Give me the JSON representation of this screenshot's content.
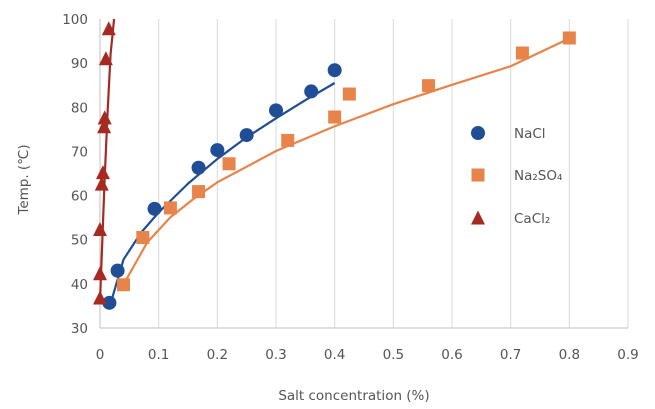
{
  "chart_data": {
    "type": "scatter",
    "xlabel": "Salt concentration (%)",
    "ylabel": "Temp. (℃)",
    "xlim": [
      0,
      0.9
    ],
    "ylim": [
      30,
      100
    ],
    "x_ticks": [
      "0",
      "0.1",
      "0.2",
      "0.3",
      "0.4",
      "0.5",
      "0.6",
      "0.7",
      "0.8",
      "0.9"
    ],
    "y_ticks": [
      "30",
      "40",
      "50",
      "60",
      "70",
      "80",
      "90",
      "100"
    ],
    "grid": "vertical",
    "legend_position": "right",
    "series": [
      {
        "name": "NaCl",
        "marker": "circle",
        "color": "#1f4e96",
        "points": [
          {
            "x": 0.016,
            "y": 35.7
          },
          {
            "x": 0.03,
            "y": 43.0
          },
          {
            "x": 0.093,
            "y": 57.0
          },
          {
            "x": 0.168,
            "y": 66.3
          },
          {
            "x": 0.2,
            "y": 70.3
          },
          {
            "x": 0.25,
            "y": 73.7
          },
          {
            "x": 0.3,
            "y": 79.3
          },
          {
            "x": 0.36,
            "y": 83.6
          },
          {
            "x": 0.4,
            "y": 88.4
          }
        ],
        "trend": [
          {
            "x": 0.016,
            "y": 34.6
          },
          {
            "x": 0.04,
            "y": 45.5
          },
          {
            "x": 0.07,
            "y": 51.6
          },
          {
            "x": 0.1,
            "y": 56.2
          },
          {
            "x": 0.15,
            "y": 62.7
          },
          {
            "x": 0.2,
            "y": 68.3
          },
          {
            "x": 0.25,
            "y": 73.2
          },
          {
            "x": 0.3,
            "y": 77.5
          },
          {
            "x": 0.35,
            "y": 81.6
          },
          {
            "x": 0.4,
            "y": 85.5
          }
        ]
      },
      {
        "name": "Na₂SO₄",
        "marker": "square",
        "color": "#e8834a",
        "points": [
          {
            "x": 0.04,
            "y": 39.8
          },
          {
            "x": 0.073,
            "y": 50.5
          },
          {
            "x": 0.12,
            "y": 57.2
          },
          {
            "x": 0.168,
            "y": 60.9
          },
          {
            "x": 0.22,
            "y": 67.2
          },
          {
            "x": 0.32,
            "y": 72.5
          },
          {
            "x": 0.4,
            "y": 77.8
          },
          {
            "x": 0.425,
            "y": 83.0
          },
          {
            "x": 0.56,
            "y": 84.9
          },
          {
            "x": 0.72,
            "y": 92.3
          },
          {
            "x": 0.8,
            "y": 95.7
          }
        ],
        "trend": [
          {
            "x": 0.04,
            "y": 39.8
          },
          {
            "x": 0.08,
            "y": 49.3
          },
          {
            "x": 0.12,
            "y": 55.1
          },
          {
            "x": 0.16,
            "y": 59.3
          },
          {
            "x": 0.2,
            "y": 63.0
          },
          {
            "x": 0.3,
            "y": 70.1
          },
          {
            "x": 0.4,
            "y": 75.7
          },
          {
            "x": 0.5,
            "y": 80.7
          },
          {
            "x": 0.6,
            "y": 85.1
          },
          {
            "x": 0.7,
            "y": 89.3
          },
          {
            "x": 0.8,
            "y": 95.6
          }
        ]
      },
      {
        "name": "CaCl₂",
        "marker": "triangle",
        "color": "#a52a22",
        "points": [
          {
            "x": 0.0,
            "y": 36.8
          },
          {
            "x": 0.0,
            "y": 42.3
          },
          {
            "x": 0.0,
            "y": 52.3
          },
          {
            "x": 0.003,
            "y": 62.6
          },
          {
            "x": 0.005,
            "y": 65.2
          },
          {
            "x": 0.007,
            "y": 75.6
          },
          {
            "x": 0.008,
            "y": 77.6
          },
          {
            "x": 0.01,
            "y": 91.0
          },
          {
            "x": 0.015,
            "y": 97.8
          }
        ],
        "trend": [
          {
            "x": 0.0,
            "y": 36.0
          },
          {
            "x": 0.004,
            "y": 50.0
          },
          {
            "x": 0.008,
            "y": 64.0
          },
          {
            "x": 0.013,
            "y": 79.0
          },
          {
            "x": 0.018,
            "y": 92.0
          },
          {
            "x": 0.024,
            "y": 100.0
          }
        ]
      }
    ]
  }
}
